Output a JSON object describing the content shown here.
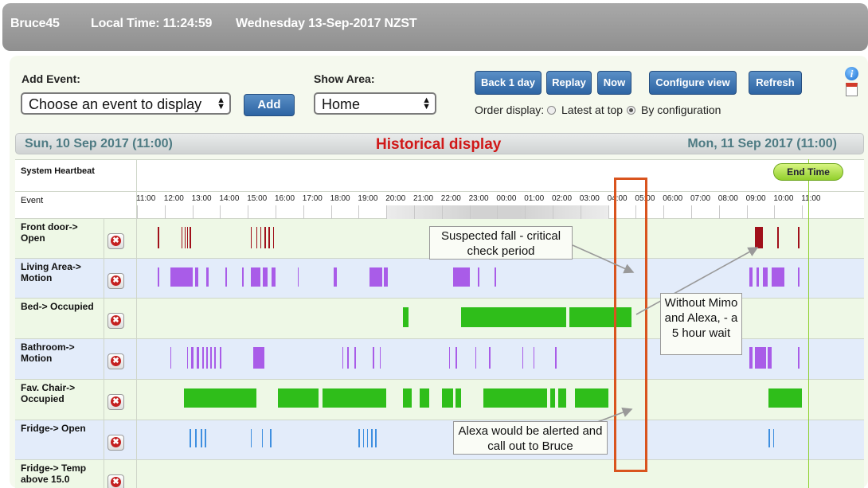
{
  "header": {
    "user": "Bruce45",
    "local_time_label": "Local Time: 11:24:59",
    "date_label": "Wednesday 13-Sep-2017 NZST"
  },
  "controls": {
    "add_event_label": "Add Event:",
    "event_select_value": "Choose an event to display",
    "add_button": "Add",
    "show_area_label": "Show Area:",
    "area_select_value": "Home",
    "buttons": [
      "Back 1 day",
      "Replay",
      "Now",
      "Configure view",
      "Refresh"
    ],
    "order_label": "Order display:",
    "order_options": [
      "Latest at top",
      "By configuration"
    ],
    "order_selected": "By configuration"
  },
  "datebar": {
    "start": "Sun, 10 Sep 2017 (11:00)",
    "title": "Historical display",
    "end": "Mon, 11 Sep 2017 (11:00)"
  },
  "timeline": {
    "heartbeat_label": "System Heartbeat",
    "event_label": "Event",
    "end_time_label": "End Time",
    "ticks": [
      "11:00",
      "12:00",
      "13:00",
      "14:00",
      "15:00",
      "16:00",
      "17:00",
      "18:00",
      "19:00",
      "20:00",
      "21:00",
      "22:00",
      "23:00",
      "00:00",
      "01:00",
      "02:00",
      "03:00",
      "04:00",
      "05:00",
      "06:00",
      "07:00",
      "08:00",
      "09:00",
      "10:00",
      "11:00"
    ],
    "rows": [
      {
        "label": "Front door-> Open",
        "color": "#a0101a"
      },
      {
        "label": "Living Area-> Motion",
        "color": "#a95ce8"
      },
      {
        "label": "Bed-> Occupied",
        "color": "#2fbe1a"
      },
      {
        "label": "Bathroom-> Motion",
        "color": "#a95ce8"
      },
      {
        "label": "Fav. Chair-> Occupied",
        "color": "#2fbe1a"
      },
      {
        "label": "Fridge-> Open",
        "color": "#3f8fe0"
      },
      {
        "label": "Fridge-> Temp above 15.0",
        "color": "#3f8fe0"
      }
    ]
  },
  "annotations": {
    "fall": "Suspected fall - critical check period",
    "wait": "Without Mimo and Alexa, - a 5 hour wait",
    "alexa": "Alexa would be alerted and call out to Bruce"
  },
  "colors": {
    "highlight_box": "#d9541e",
    "end_time_line": "#8fd02f",
    "odd_row": "#eef8e6",
    "even_row": "#e3ecfa"
  }
}
